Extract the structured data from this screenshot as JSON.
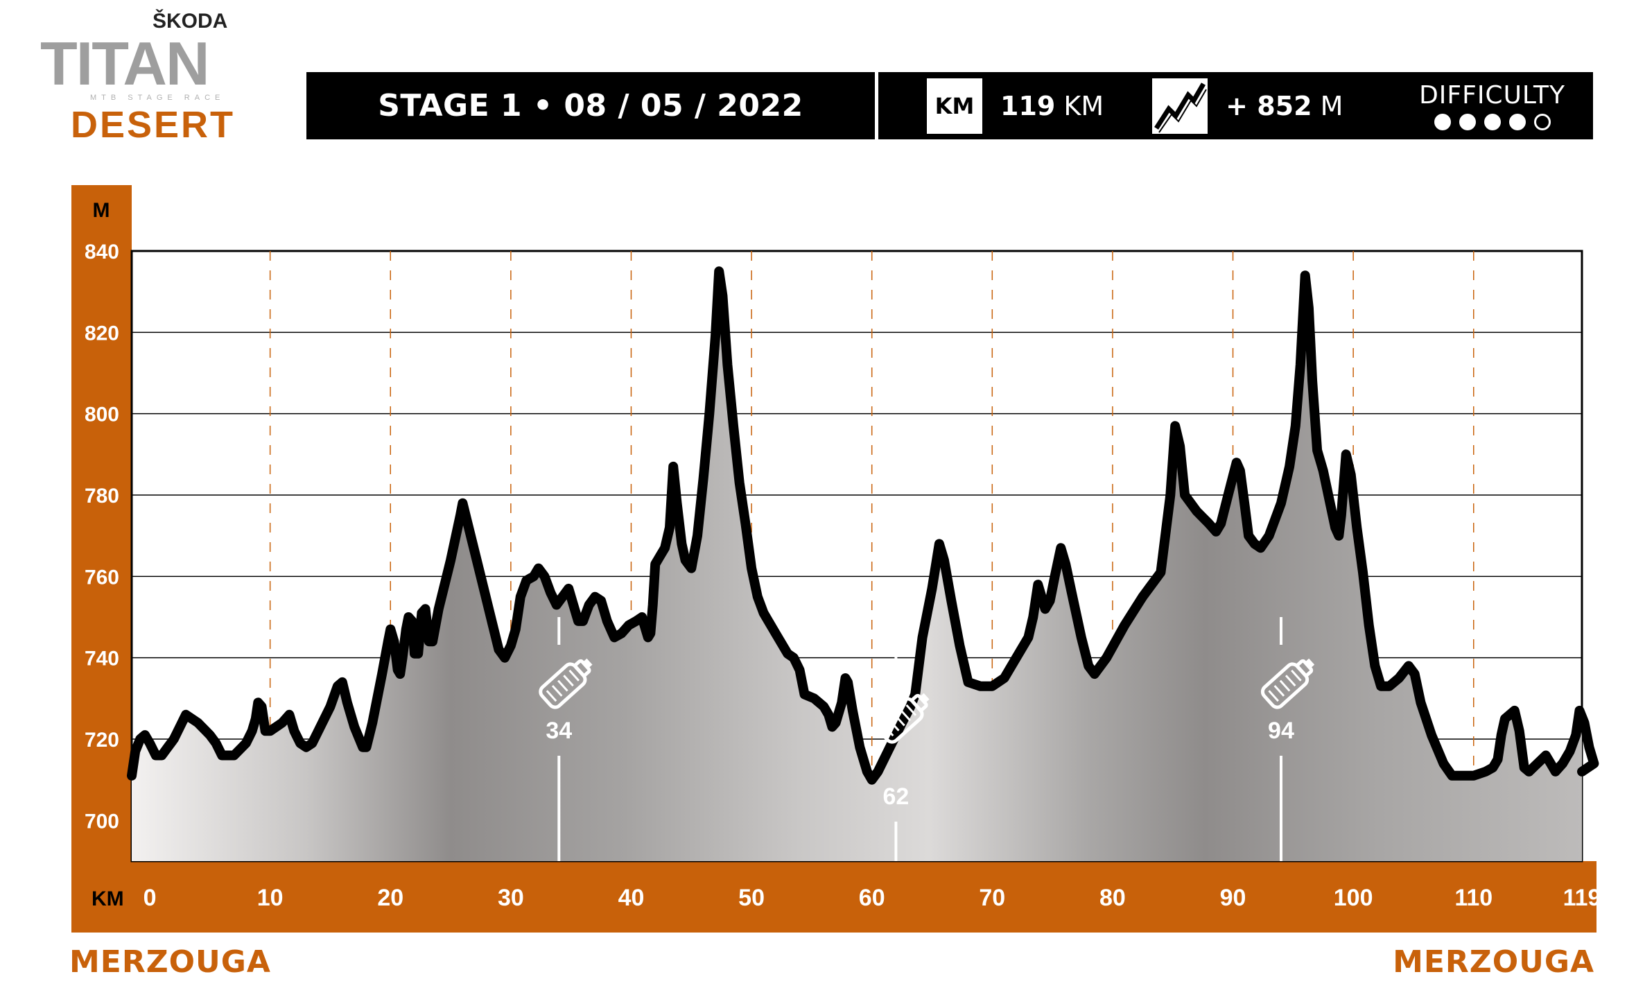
{
  "logo": {
    "brand": "ŠKODA",
    "name": "TITAN",
    "tagline": "MTB STAGE RACE",
    "edition": "DESERT"
  },
  "header": {
    "stage_label": "STAGE 1 • 08  / 05 / 2022",
    "distance_icon_label": "KM",
    "distance_value": "119",
    "distance_unit": "KM",
    "climb_icon": "mountain-climb-icon",
    "climb_value": "+ 852",
    "climb_unit": "M",
    "difficulty_label": "DIFFICULTY",
    "difficulty_level": 4,
    "difficulty_max": 5
  },
  "start_location": "MERZOUGA",
  "finish_location": "MERZOUGA",
  "colors": {
    "accent": "#c8610a",
    "header": "#000000",
    "profile_line": "#000000",
    "fill_light": "#f2f0ef",
    "fill_dark": "#8d8a89"
  },
  "chart_data": {
    "type": "area",
    "title": "",
    "xlabel": "KM",
    "ylabel": "M",
    "xlim": [
      -1.5,
      119
    ],
    "ylim": [
      690,
      840
    ],
    "x_ticks": [
      0,
      10,
      20,
      30,
      40,
      50,
      60,
      70,
      80,
      90,
      100,
      110,
      119
    ],
    "y_ticks": [
      700,
      720,
      740,
      760,
      780,
      800,
      820,
      840
    ],
    "grid": {
      "horizontal": true,
      "vertical_dashed": true
    },
    "feed_zones": [
      {
        "km": 34,
        "label": "34",
        "icon": "water-bottle-icon"
      },
      {
        "km": 62,
        "label": "62",
        "icon": "water-bottle-icon"
      },
      {
        "km": 94,
        "label": "94",
        "icon": "water-bottle-icon"
      }
    ],
    "series": [
      {
        "values": [
          [
            -1.5,
            711
          ],
          [
            -1.2,
            717
          ],
          [
            -0.8,
            720
          ],
          [
            -0.4,
            721
          ],
          [
            0,
            719
          ],
          [
            0.5,
            716
          ],
          [
            1,
            716
          ],
          [
            1.5,
            718
          ],
          [
            2,
            720
          ],
          [
            3,
            726
          ],
          [
            4,
            724
          ],
          [
            5,
            721
          ],
          [
            5.5,
            719
          ],
          [
            6,
            716
          ],
          [
            7,
            716
          ],
          [
            8,
            719
          ],
          [
            8.5,
            722
          ],
          [
            8.8,
            725
          ],
          [
            9,
            729
          ],
          [
            9.3,
            728
          ],
          [
            9.6,
            722
          ],
          [
            10,
            722
          ],
          [
            11,
            724
          ],
          [
            11.6,
            726
          ],
          [
            12,
            722
          ],
          [
            12.5,
            719
          ],
          [
            13,
            718
          ],
          [
            13.5,
            719
          ],
          [
            14,
            722
          ],
          [
            15,
            728
          ],
          [
            15.6,
            733
          ],
          [
            16,
            734
          ],
          [
            16.4,
            729
          ],
          [
            17,
            723
          ],
          [
            17.7,
            718
          ],
          [
            18,
            718
          ],
          [
            18.5,
            724
          ],
          [
            19.3,
            736
          ],
          [
            19.8,
            744
          ],
          [
            20,
            747
          ],
          [
            20.3,
            744
          ],
          [
            20.6,
            737
          ],
          [
            20.8,
            736
          ],
          [
            21,
            740
          ],
          [
            21.3,
            747
          ],
          [
            21.5,
            750
          ],
          [
            21.8,
            749
          ],
          [
            22,
            741
          ],
          [
            22.3,
            741
          ],
          [
            22.6,
            751
          ],
          [
            22.9,
            752
          ],
          [
            23.2,
            744
          ],
          [
            23.5,
            744
          ],
          [
            24,
            752
          ],
          [
            25,
            764
          ],
          [
            25.8,
            775
          ],
          [
            26,
            778
          ],
          [
            26.5,
            772
          ],
          [
            27.5,
            760
          ],
          [
            28.5,
            748
          ],
          [
            29,
            742
          ],
          [
            29.5,
            740
          ],
          [
            30,
            743
          ],
          [
            30.4,
            747
          ],
          [
            30.8,
            755
          ],
          [
            31.3,
            759
          ],
          [
            31.9,
            760
          ],
          [
            32.3,
            762
          ],
          [
            32.8,
            760
          ],
          [
            33.3,
            756
          ],
          [
            33.8,
            753
          ],
          [
            34.3,
            755
          ],
          [
            34.8,
            757
          ],
          [
            35.2,
            753
          ],
          [
            35.6,
            749
          ],
          [
            36,
            749
          ],
          [
            36.5,
            753
          ],
          [
            37,
            755
          ],
          [
            37.5,
            754
          ],
          [
            38,
            749
          ],
          [
            38.6,
            745
          ],
          [
            39.2,
            746
          ],
          [
            39.8,
            748
          ],
          [
            40.4,
            749
          ],
          [
            40.9,
            750
          ],
          [
            41.2,
            747
          ],
          [
            41.4,
            745
          ],
          [
            41.6,
            746
          ],
          [
            41.8,
            753
          ],
          [
            42,
            763
          ],
          [
            42.4,
            765
          ],
          [
            42.8,
            767
          ],
          [
            43.2,
            772
          ],
          [
            43.5,
            787
          ],
          [
            43.8,
            778
          ],
          [
            44.2,
            768
          ],
          [
            44.5,
            764
          ],
          [
            45,
            762
          ],
          [
            45.5,
            770
          ],
          [
            46,
            784
          ],
          [
            46.5,
            800
          ],
          [
            47,
            819
          ],
          [
            47.3,
            835
          ],
          [
            47.6,
            829
          ],
          [
            48,
            812
          ],
          [
            48.5,
            797
          ],
          [
            49,
            783
          ],
          [
            49.5,
            773
          ],
          [
            50,
            762
          ],
          [
            50.5,
            755
          ],
          [
            51,
            751
          ],
          [
            52,
            746
          ],
          [
            53,
            741
          ],
          [
            53.5,
            740
          ],
          [
            54,
            737
          ],
          [
            54.4,
            731
          ],
          [
            55.2,
            730
          ],
          [
            56,
            728
          ],
          [
            56.4,
            726
          ],
          [
            56.7,
            723
          ],
          [
            57,
            724
          ],
          [
            57.5,
            729
          ],
          [
            57.8,
            735
          ],
          [
            58,
            734
          ],
          [
            58.4,
            727
          ],
          [
            59,
            718
          ],
          [
            59.6,
            712
          ],
          [
            60,
            710
          ],
          [
            60.5,
            712
          ],
          [
            61.5,
            718
          ],
          [
            62.5,
            724
          ],
          [
            63.2,
            728
          ],
          [
            63.6,
            731
          ],
          [
            64.2,
            745
          ],
          [
            65,
            757
          ],
          [
            65.6,
            768
          ],
          [
            66,
            764
          ],
          [
            66.6,
            754
          ],
          [
            67.3,
            743
          ],
          [
            68,
            734
          ],
          [
            69,
            733
          ],
          [
            70,
            733
          ],
          [
            71,
            735
          ],
          [
            72,
            740
          ],
          [
            73,
            745
          ],
          [
            73.4,
            750
          ],
          [
            73.8,
            758
          ],
          [
            74.1,
            755
          ],
          [
            74.4,
            752
          ],
          [
            74.8,
            754
          ],
          [
            75.2,
            760
          ],
          [
            75.7,
            767
          ],
          [
            76.1,
            763
          ],
          [
            76.6,
            756
          ],
          [
            77.4,
            745
          ],
          [
            78,
            738
          ],
          [
            78.5,
            736
          ],
          [
            79.5,
            740
          ],
          [
            81,
            748
          ],
          [
            82.5,
            755
          ],
          [
            84,
            761
          ],
          [
            84.8,
            780
          ],
          [
            85.2,
            797
          ],
          [
            85.6,
            792
          ],
          [
            86,
            780
          ],
          [
            87,
            776
          ],
          [
            88,
            773
          ],
          [
            88.6,
            771
          ],
          [
            89,
            773
          ],
          [
            89.6,
            780
          ],
          [
            90.3,
            788
          ],
          [
            90.6,
            786
          ],
          [
            91,
            777
          ],
          [
            91.3,
            770
          ],
          [
            91.8,
            768
          ],
          [
            92.3,
            767
          ],
          [
            93,
            770
          ],
          [
            94,
            778
          ],
          [
            94.7,
            787
          ],
          [
            95.2,
            797
          ],
          [
            95.6,
            812
          ],
          [
            96,
            834
          ],
          [
            96.3,
            826
          ],
          [
            96.6,
            808
          ],
          [
            97,
            791
          ],
          [
            97.5,
            786
          ],
          [
            98,
            779
          ],
          [
            98.5,
            772
          ],
          [
            98.8,
            770
          ],
          [
            99,
            775
          ],
          [
            99.4,
            790
          ],
          [
            99.8,
            785
          ],
          [
            100.3,
            772
          ],
          [
            100.8,
            761
          ],
          [
            101.3,
            748
          ],
          [
            101.8,
            738
          ],
          [
            102.3,
            733
          ],
          [
            103,
            733
          ],
          [
            103.8,
            735
          ],
          [
            104.6,
            738
          ],
          [
            105.1,
            736
          ],
          [
            105.6,
            729
          ],
          [
            106.5,
            721
          ],
          [
            107.5,
            714
          ],
          [
            108.2,
            711
          ],
          [
            109,
            711
          ],
          [
            110,
            711
          ],
          [
            111,
            712
          ],
          [
            111.6,
            713
          ],
          [
            112,
            715
          ],
          [
            112.3,
            721
          ],
          [
            112.6,
            725
          ],
          [
            113,
            726
          ],
          [
            113.4,
            727
          ],
          [
            113.8,
            722
          ],
          [
            114.2,
            713
          ],
          [
            114.6,
            712
          ],
          [
            115.3,
            714
          ],
          [
            116,
            716
          ],
          [
            116.4,
            714
          ],
          [
            116.8,
            712
          ],
          [
            117.4,
            714
          ],
          [
            118,
            717
          ],
          [
            118.5,
            721
          ],
          [
            118.8,
            727
          ],
          [
            119.2,
            724
          ],
          [
            119.6,
            718
          ],
          [
            120,
            714
          ],
          [
            120.3,
            712
          ]
        ]
      }
    ]
  }
}
